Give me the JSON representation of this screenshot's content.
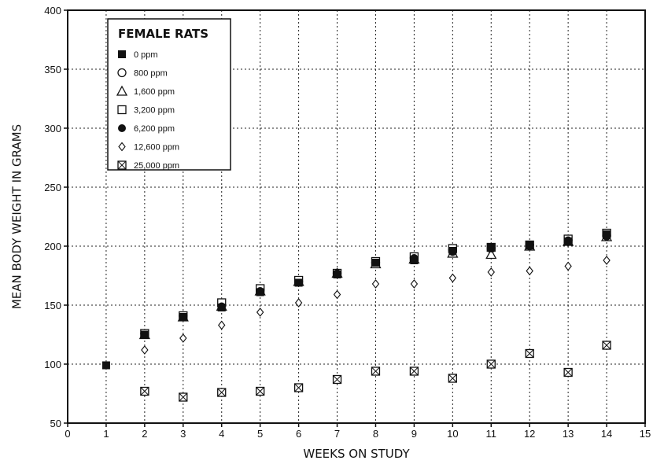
{
  "chart_data": {
    "type": "scatter",
    "xlabel": "WEEKS ON STUDY",
    "ylabel": "MEAN BODY WEIGHT IN GRAMS",
    "xlim": [
      0,
      15
    ],
    "ylim": [
      50,
      400
    ],
    "x_ticks": [
      "0",
      "1",
      "2",
      "3",
      "4",
      "5",
      "6",
      "7",
      "8",
      "9",
      "10",
      "11",
      "12",
      "13",
      "14",
      "15"
    ],
    "y_ticks": [
      "50",
      "100",
      "150",
      "200",
      "250",
      "300",
      "350",
      "400"
    ],
    "grid": true,
    "legend": {
      "title": "FEMALE RATS",
      "placement": "top-left"
    },
    "series": [
      {
        "name": "0 ppm",
        "marker": "filled-square",
        "x": [
          1,
          2,
          3,
          4,
          5,
          6,
          7,
          8,
          9,
          10,
          11,
          12,
          13,
          14
        ],
        "y": [
          99,
          125,
          140,
          148,
          161,
          169,
          176,
          186,
          188,
          196,
          199,
          201,
          204,
          210
        ]
      },
      {
        "name": "800 ppm",
        "marker": "open-circle",
        "x": [
          2,
          3,
          4,
          5,
          6,
          7,
          8,
          9,
          10,
          11,
          12,
          13,
          14
        ],
        "y": [
          126,
          141,
          150,
          163,
          170,
          177,
          186,
          190,
          197,
          198,
          201,
          205,
          209
        ]
      },
      {
        "name": "1,600 ppm",
        "marker": "open-triangle",
        "x": [
          2,
          3,
          4,
          5,
          6,
          7,
          8,
          9,
          10,
          11,
          12,
          13,
          14
        ],
        "y": [
          125,
          140,
          149,
          162,
          170,
          177,
          185,
          189,
          194,
          193,
          200,
          204,
          208
        ]
      },
      {
        "name": "3,200 ppm",
        "marker": "open-square",
        "x": [
          2,
          3,
          4,
          5,
          6,
          7,
          8,
          9,
          10,
          11,
          12,
          13,
          14
        ],
        "y": [
          126,
          141,
          152,
          164,
          171,
          177,
          187,
          191,
          198,
          199,
          201,
          206,
          211
        ]
      },
      {
        "name": "6,200 ppm",
        "marker": "filled-circle",
        "x": [
          2,
          3,
          4,
          5,
          6,
          7,
          8,
          9,
          10,
          11,
          12,
          13,
          14
        ],
        "y": [
          125,
          140,
          149,
          162,
          169,
          177,
          186,
          190,
          195,
          198,
          200,
          205,
          208
        ]
      },
      {
        "name": "12,600 ppm",
        "marker": "open-diamond",
        "x": [
          2,
          3,
          4,
          5,
          6,
          7,
          8,
          9,
          10,
          11,
          12,
          13,
          14
        ],
        "y": [
          112,
          122,
          133,
          144,
          152,
          159,
          168,
          168,
          173,
          178,
          179,
          183,
          188
        ]
      },
      {
        "name": "25,000 ppm",
        "marker": "crossed-square",
        "x": [
          2,
          3,
          4,
          5,
          6,
          7,
          8,
          9,
          10,
          11,
          12,
          13,
          14
        ],
        "y": [
          77,
          72,
          76,
          77,
          80,
          87,
          94,
          94,
          88,
          100,
          109,
          93,
          116
        ]
      }
    ]
  }
}
